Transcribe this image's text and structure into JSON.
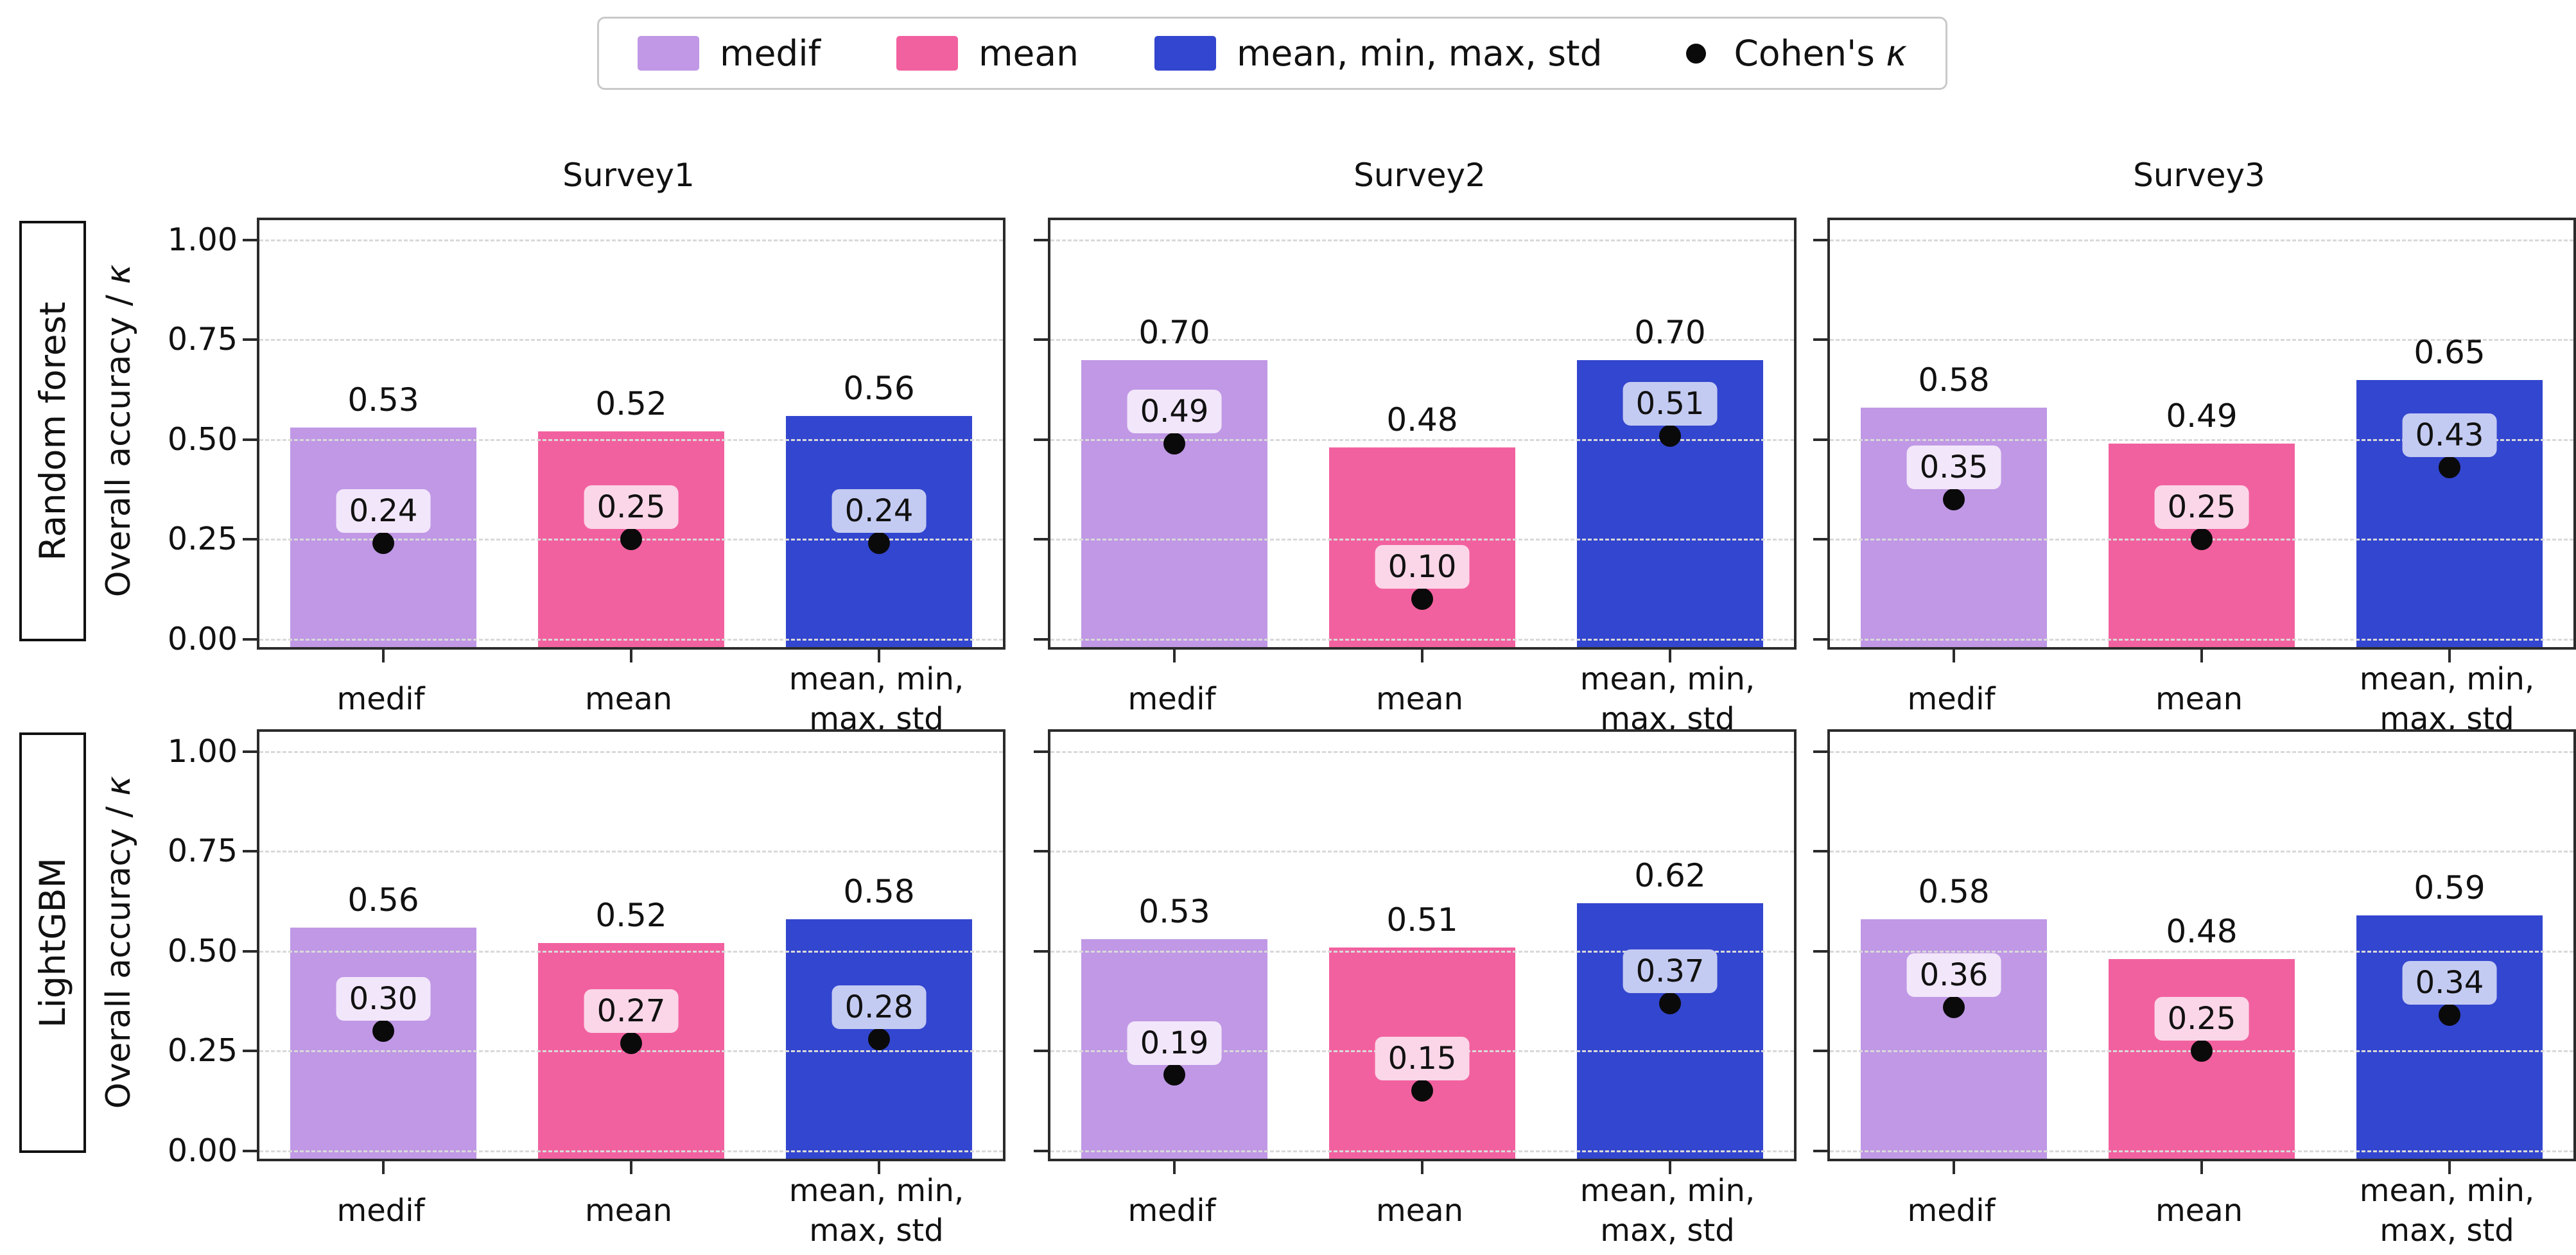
{
  "legend": {
    "items": [
      {
        "label": "medif",
        "color": "#C098E5",
        "type": "patch"
      },
      {
        "label": "mean",
        "color": "#F2619F",
        "type": "patch"
      },
      {
        "label": "mean, min, max, std",
        "color": "#3346CF",
        "type": "patch"
      },
      {
        "label_prefix": "Cohen's ",
        "kappa_symbol": "κ",
        "color": "#0a0a0a",
        "type": "dot"
      }
    ]
  },
  "chart_data": {
    "type": "bar",
    "rows": [
      "Random forest",
      "LightGBM"
    ],
    "cols": [
      "Survey1",
      "Survey2",
      "Survey3"
    ],
    "categories": [
      "medif",
      "mean",
      "mean, min,\nmax, std"
    ],
    "bar_colors": [
      "#C098E5",
      "#F2619F",
      "#3346CF"
    ],
    "kappa_label_bg": [
      "#F2E6FA",
      "#FBD6E8",
      "#C4CBF2"
    ],
    "kappa_dot_color": "#0a0a0a",
    "ylabel_prefix": "Overall accuracy / ",
    "ylabel_kappa": "κ",
    "yticks": [
      0,
      0.25,
      0.5,
      0.75,
      1
    ],
    "ytick_labels": [
      "0.00",
      "0.25",
      "0.50",
      "0.75",
      "1.00"
    ],
    "ylim": [
      -0.02,
      1.05
    ],
    "grid": "horizontal-dashed",
    "legend_position": "top-center",
    "panels": [
      {
        "row": "Random forest",
        "col": "Survey1",
        "accuracy": [
          0.53,
          0.52,
          0.56
        ],
        "kappa": [
          0.24,
          0.25,
          0.24
        ]
      },
      {
        "row": "Random forest",
        "col": "Survey2",
        "accuracy": [
          0.7,
          0.48,
          0.7
        ],
        "kappa": [
          0.49,
          0.1,
          0.51
        ]
      },
      {
        "row": "Random forest",
        "col": "Survey3",
        "accuracy": [
          0.58,
          0.49,
          0.65
        ],
        "kappa": [
          0.35,
          0.25,
          0.43
        ]
      },
      {
        "row": "LightGBM",
        "col": "Survey1",
        "accuracy": [
          0.56,
          0.52,
          0.58
        ],
        "kappa": [
          0.3,
          0.27,
          0.28
        ]
      },
      {
        "row": "LightGBM",
        "col": "Survey2",
        "accuracy": [
          0.53,
          0.51,
          0.62
        ],
        "kappa": [
          0.19,
          0.15,
          0.37
        ]
      },
      {
        "row": "LightGBM",
        "col": "Survey3",
        "accuracy": [
          0.58,
          0.48,
          0.59
        ],
        "kappa": [
          0.36,
          0.25,
          0.34
        ]
      }
    ]
  }
}
